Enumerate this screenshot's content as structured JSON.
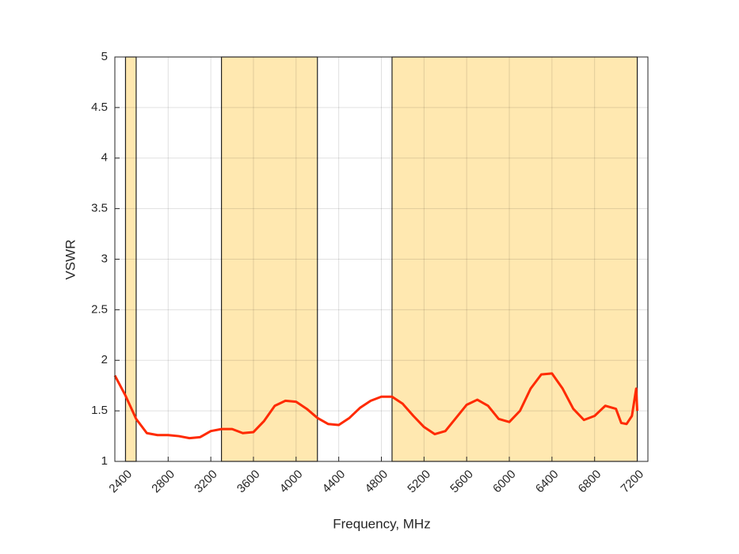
{
  "chart_data": {
    "type": "line",
    "xlabel": "Frequency, MHz",
    "ylabel": "VSWR",
    "x": [
      2300,
      2400,
      2500,
      2600,
      2700,
      2800,
      2900,
      3000,
      3100,
      3200,
      3300,
      3400,
      3500,
      3600,
      3700,
      3800,
      3900,
      4000,
      4100,
      4200,
      4300,
      4400,
      4500,
      4600,
      4700,
      4800,
      4900,
      5000,
      5100,
      5200,
      5300,
      5400,
      5500,
      5600,
      5700,
      5800,
      5900,
      6000,
      6100,
      6200,
      6300,
      6400,
      6500,
      6600,
      6700,
      6800,
      6900,
      7000,
      7050,
      7100,
      7150,
      7190,
      7200
    ],
    "values": [
      1.85,
      1.65,
      1.42,
      1.28,
      1.26,
      1.26,
      1.25,
      1.23,
      1.24,
      1.3,
      1.32,
      1.32,
      1.28,
      1.29,
      1.4,
      1.55,
      1.6,
      1.59,
      1.52,
      1.43,
      1.37,
      1.36,
      1.43,
      1.53,
      1.6,
      1.64,
      1.64,
      1.57,
      1.45,
      1.34,
      1.27,
      1.3,
      1.43,
      1.56,
      1.61,
      1.55,
      1.42,
      1.39,
      1.5,
      1.72,
      1.86,
      1.87,
      1.72,
      1.52,
      1.41,
      1.45,
      1.55,
      1.52,
      1.38,
      1.37,
      1.45,
      1.72,
      1.5
    ],
    "color": "#ff2a00",
    "bands": [
      [
        2400,
        2500
      ],
      [
        3300,
        4200
      ],
      [
        4900,
        7200
      ]
    ],
    "band_color": "#ffe8b0",
    "xlim": [
      2300,
      7300
    ],
    "xticks": [
      2400,
      2800,
      3200,
      3600,
      4000,
      4400,
      4800,
      5200,
      5600,
      6000,
      6400,
      6800,
      7200
    ],
    "ylim": [
      1,
      5
    ],
    "yticks": [
      1,
      1.5,
      2,
      2.5,
      3,
      3.5,
      4,
      4.5,
      5
    ],
    "grid": true
  }
}
